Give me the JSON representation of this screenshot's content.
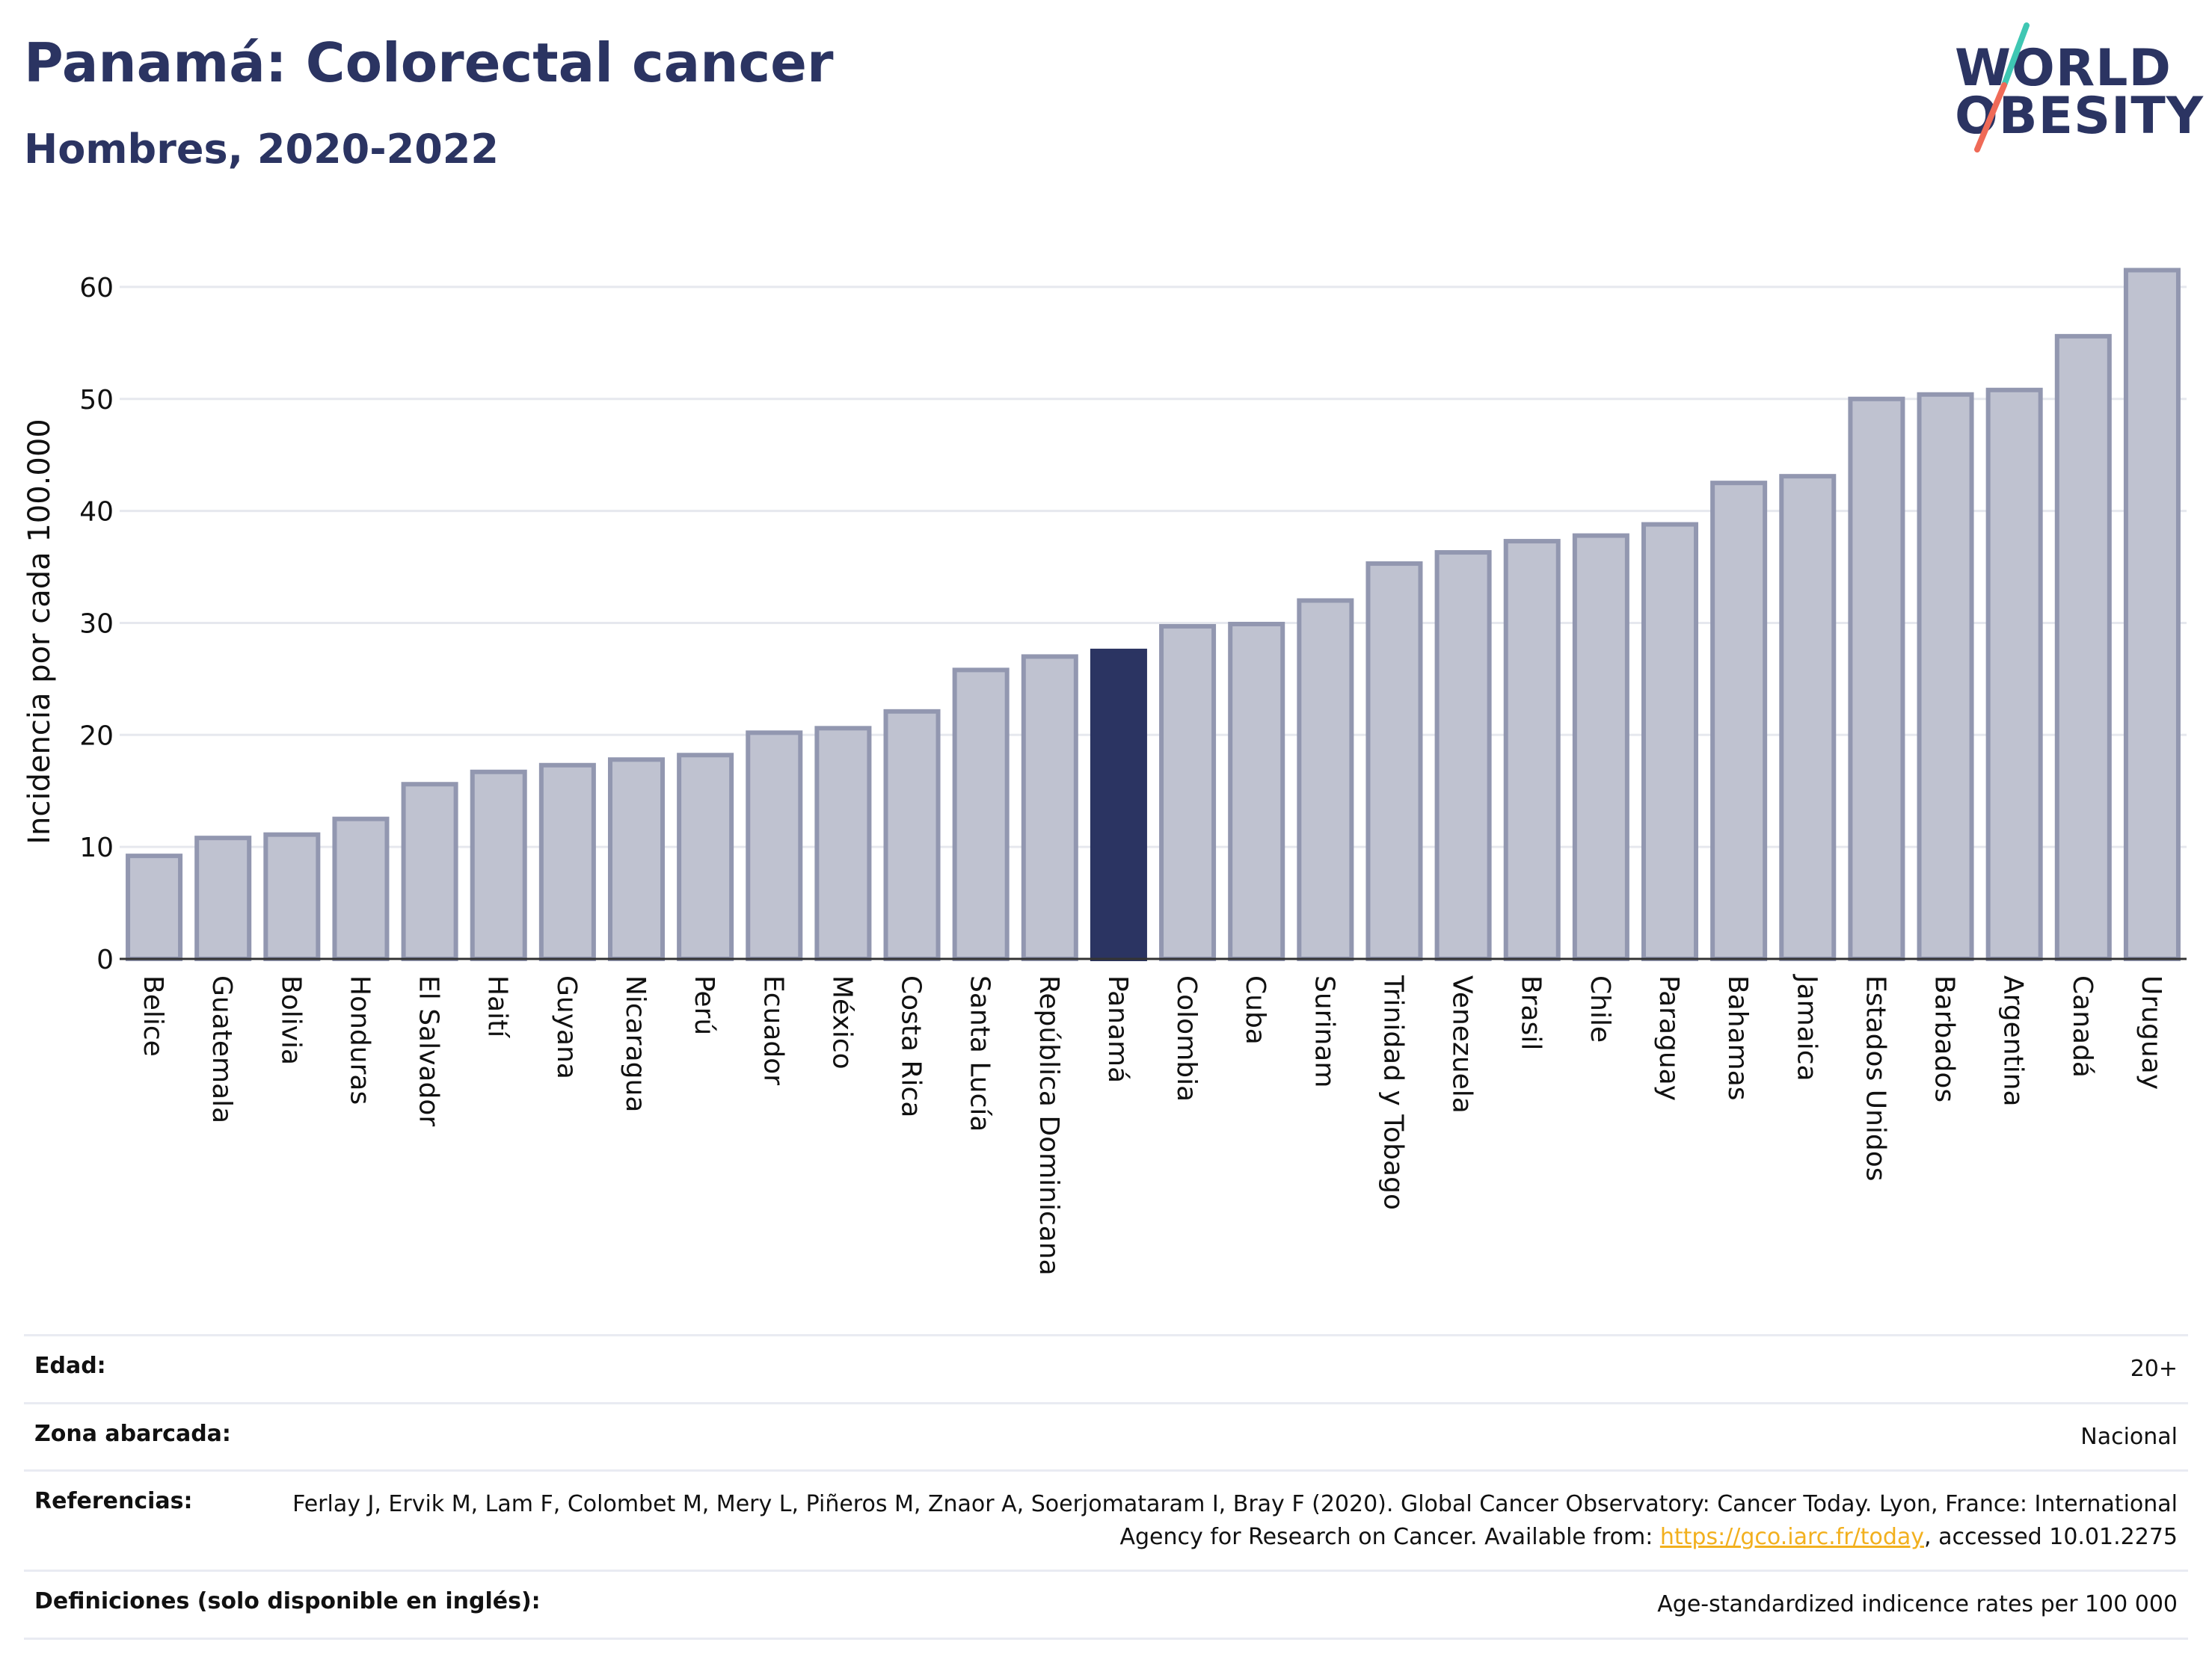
{
  "header": {
    "title": "Panamá: Colorectal cancer",
    "subtitle": "Hombres, 2020-2022"
  },
  "logo": {
    "line1": "WORLD",
    "line2": "OBESITY",
    "colors": {
      "text": "#2b3462",
      "slash_top": "#3fc7b3",
      "slash_bottom": "#ef6a57"
    }
  },
  "colors": {
    "bar_default_fill": "#bfc2d0",
    "bar_default_stroke": "#9297b0",
    "bar_highlight": "#2b3462",
    "grid": "#e6e8ee",
    "axis": "#333333"
  },
  "chart_data": {
    "type": "bar",
    "title": "",
    "xlabel": "",
    "ylabel": "Incidencia por cada 100.000",
    "ylim": [
      0,
      65
    ],
    "yticks": [
      0,
      10,
      20,
      30,
      40,
      50,
      60
    ],
    "grid": true,
    "highlight": "Panamá",
    "categories": [
      "Belice",
      "Guatemala",
      "Bolivia",
      "Honduras",
      "El Salvador",
      "Haití",
      "Guyana",
      "Nicaragua",
      "Perú",
      "Ecuador",
      "México",
      "Costa Rica",
      "Santa Lucía",
      "República Dominicana",
      "Panamá",
      "Colombia",
      "Cuba",
      "Surinam",
      "Trinidad y Tobago",
      "Venezuela",
      "Brasil",
      "Chile",
      "Paraguay",
      "Bahamas",
      "Jamaica",
      "Estados Unidos",
      "Barbados",
      "Argentina",
      "Canadá",
      "Uruguay"
    ],
    "values": [
      9.2,
      10.8,
      11.1,
      12.5,
      15.6,
      16.7,
      17.3,
      17.8,
      18.2,
      20.2,
      20.6,
      22.1,
      25.8,
      27.0,
      27.5,
      29.7,
      29.9,
      32.0,
      35.3,
      36.3,
      37.3,
      37.8,
      38.8,
      42.5,
      43.1,
      50.0,
      50.4,
      50.8,
      55.6,
      61.5
    ]
  },
  "metadata": {
    "rows": [
      {
        "label": "Edad:",
        "value": "20+"
      },
      {
        "label": "Zona abarcada:",
        "value": "Nacional"
      },
      {
        "label": "Referencias:",
        "value_before": "Ferlay J, Ervik M, Lam F, Colombet M, Mery L, Piñeros M, Znaor A, Soerjomataram I, Bray F (2020). Global Cancer Observatory: Cancer Today. Lyon, France: International Agency for Research on Cancer. Available from: ",
        "link": "https://gco.iarc.fr/today",
        "value_after": ", accessed 10.01.2275"
      },
      {
        "label": "Definiciones (solo disponible en inglés):",
        "value": "Age-standardized indicence rates per 100 000"
      }
    ]
  }
}
